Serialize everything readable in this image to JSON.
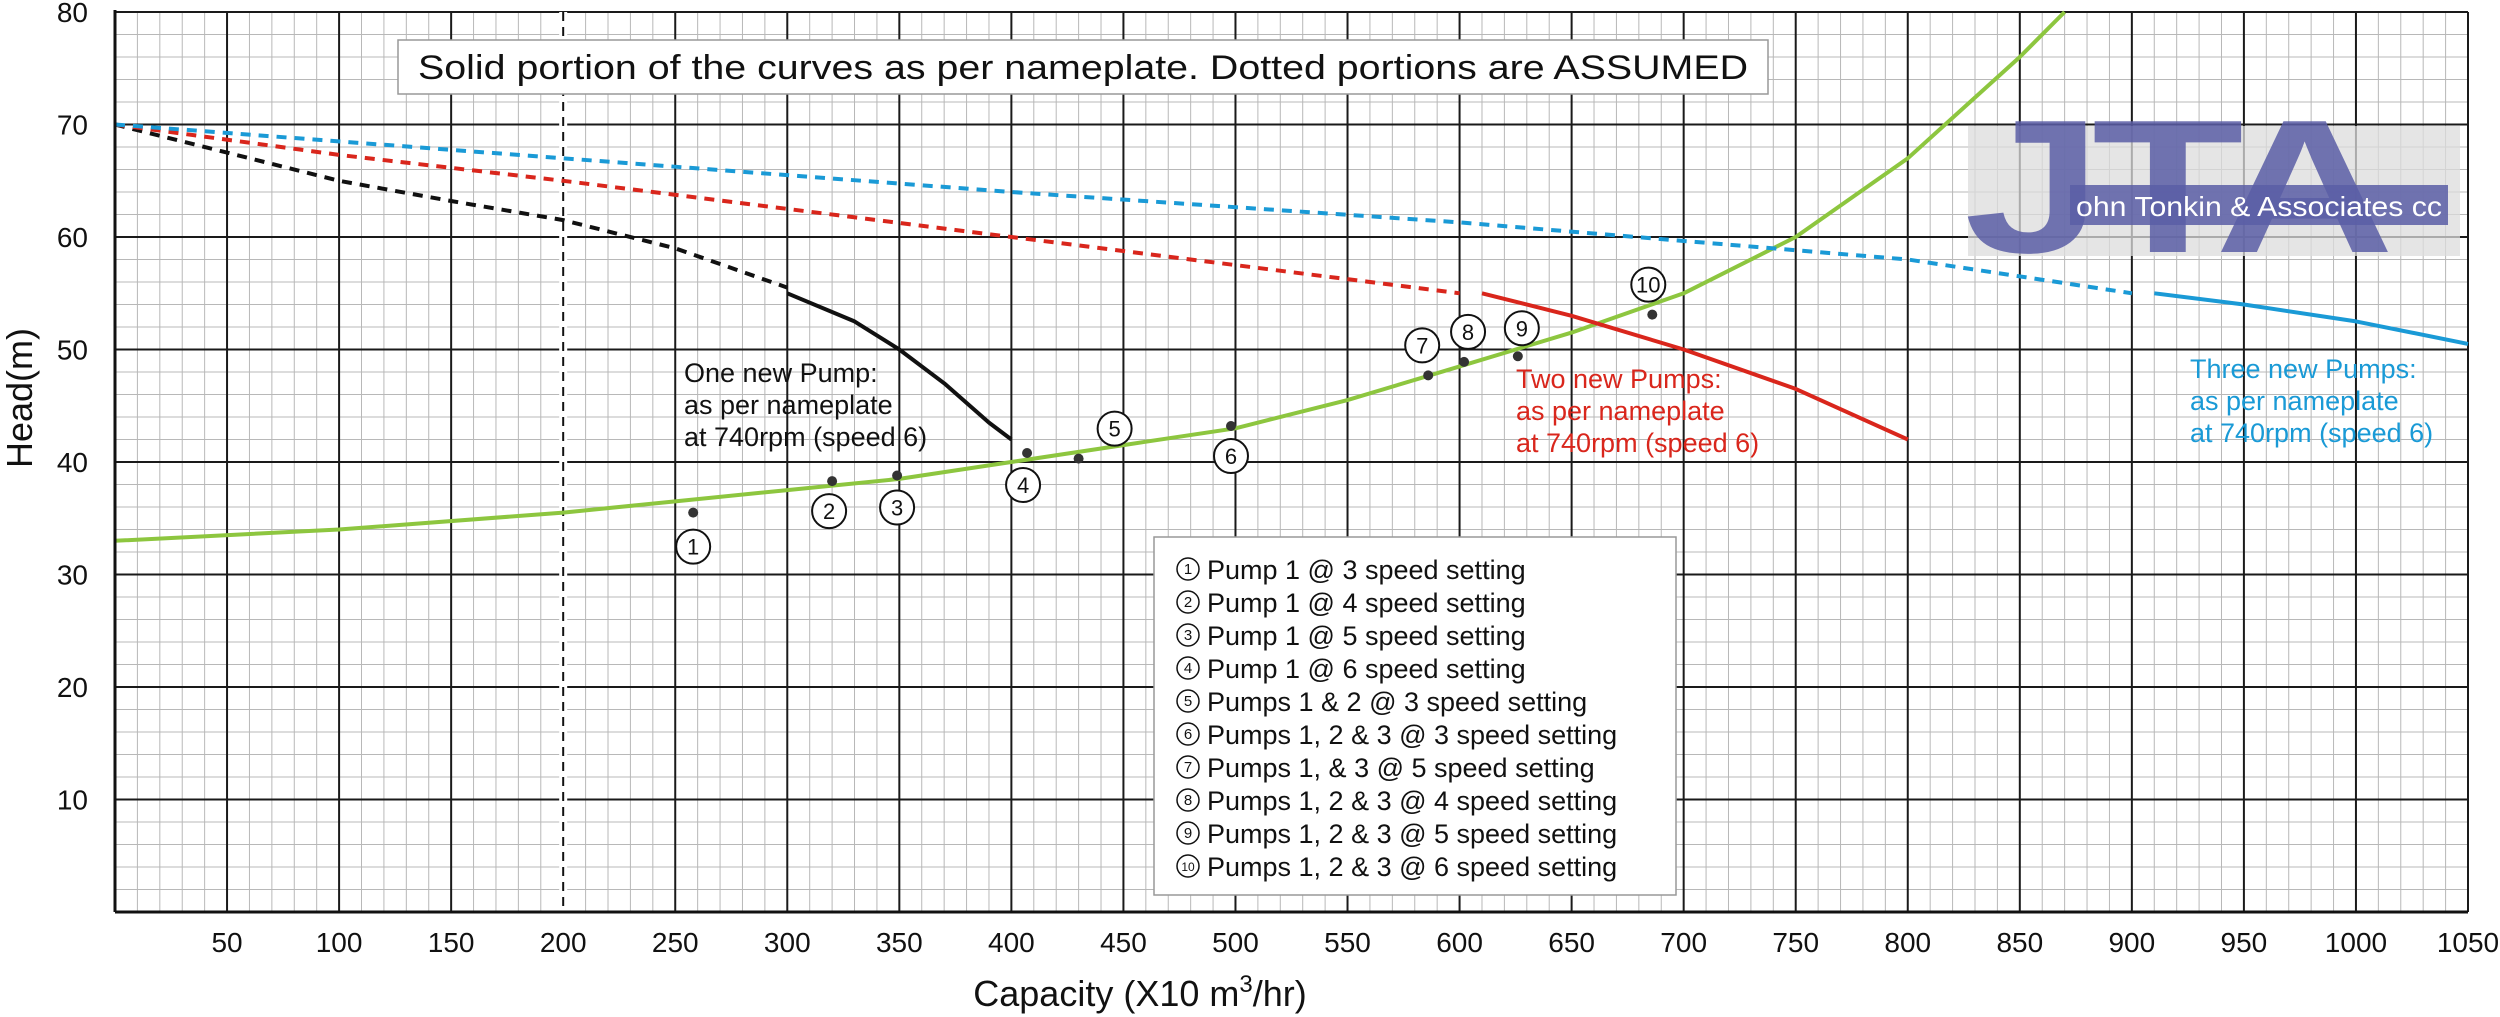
{
  "chart_data": {
    "type": "line",
    "title": "",
    "xlabel_main": "Capacity (X10 m",
    "xlabel_sup": "3",
    "xlabel_tail": "/hr)",
    "ylabel": "Head(m)",
    "xlim": [
      0,
      1050
    ],
    "ylim": [
      0,
      80
    ],
    "grid": true,
    "x_ticks": [
      "50",
      "100",
      "150",
      "200",
      "250",
      "300",
      "350",
      "400",
      "450",
      "500",
      "550",
      "600",
      "650",
      "700",
      "750",
      "800",
      "850",
      "900",
      "950",
      "1000",
      "1050"
    ],
    "y_ticks": [
      "10",
      "20",
      "30",
      "40",
      "50",
      "60",
      "70",
      "80"
    ],
    "reference_line_x": 200,
    "note": "Solid portion of the curves as per nameplate. Dotted portions are ASSUMED",
    "series": [
      {
        "color": "#8dc63f",
        "style": "solid",
        "x": [
          0,
          100,
          200,
          250,
          300,
          350,
          400,
          450,
          500,
          550,
          600,
          650,
          700,
          750,
          800,
          850,
          870
        ],
        "y": [
          33,
          34,
          35.5,
          36.5,
          37.5,
          38.5,
          40,
          41.5,
          43,
          45.5,
          48.5,
          51.5,
          55,
          60,
          67,
          76,
          80
        ]
      },
      {
        "color": "#111111",
        "style": "dashed",
        "x": [
          0,
          50,
          100,
          150,
          200,
          250,
          300
        ],
        "y": [
          70,
          67.5,
          65,
          63.2,
          61.5,
          59,
          55.5
        ]
      },
      {
        "color": "#111111",
        "style": "solid",
        "x": [
          300,
          330,
          350,
          370,
          390,
          400
        ],
        "y": [
          55,
          52.5,
          50,
          47,
          43.5,
          42
        ]
      },
      {
        "color": "#d9261c",
        "style": "dashed",
        "x": [
          0,
          100,
          200,
          300,
          400,
          500,
          600
        ],
        "y": [
          70,
          67.3,
          65,
          62.5,
          60,
          57.5,
          55
        ]
      },
      {
        "color": "#d9261c",
        "style": "solid",
        "x": [
          610,
          650,
          700,
          750,
          800
        ],
        "y": [
          55,
          53,
          50,
          46.5,
          42
        ]
      },
      {
        "color": "#1a9ad6",
        "style": "dashed",
        "x": [
          0,
          200,
          400,
          600,
          800,
          900
        ],
        "y": [
          70,
          67,
          64,
          61.3,
          58,
          55
        ]
      },
      {
        "color": "#1a9ad6",
        "style": "solid",
        "x": [
          910,
          950,
          1000,
          1050
        ],
        "y": [
          55,
          54,
          52.5,
          50.5
        ]
      }
    ],
    "points": [
      {
        "label": "1",
        "x": 258,
        "y": 35.5
      },
      {
        "label": "2",
        "x": 320,
        "y": 38.3
      },
      {
        "label": "3",
        "x": 349,
        "y": 38.8
      },
      {
        "label": "4",
        "x": 407,
        "y": 40.8
      },
      {
        "label": "5",
        "x": 430,
        "y": 40.3
      },
      {
        "label": "6",
        "x": 498,
        "y": 43.2
      },
      {
        "label": "7",
        "x": 586,
        "y": 47.7
      },
      {
        "label": "8",
        "x": 602,
        "y": 48.9
      },
      {
        "label": "9",
        "x": 626,
        "y": 49.4
      },
      {
        "label": "10",
        "x": 686,
        "y": 53.1
      }
    ],
    "annotations": [
      {
        "lines": [
          "One new Pump:",
          "as per nameplate",
          "at 740rpm (speed 6)"
        ],
        "color": "#111111"
      },
      {
        "lines": [
          "Two new Pumps:",
          "as per nameplate",
          "at 740rpm (speed 6)"
        ],
        "color": "#d9261c"
      },
      {
        "lines": [
          "Three new Pumps:",
          "as per nameplate",
          "at 740rpm (speed 6)"
        ],
        "color": "#1a9ad6"
      }
    ],
    "legend": [
      {
        "num": "1",
        "text": "Pump 1 @ 3 speed setting"
      },
      {
        "num": "2",
        "text": "Pump 1 @ 4 speed setting"
      },
      {
        "num": "3",
        "text": "Pump 1 @ 5 speed setting"
      },
      {
        "num": "4",
        "text": "Pump 1 @ 6 speed setting"
      },
      {
        "num": "5",
        "text": "Pumps 1 & 2 @ 3 speed setting"
      },
      {
        "num": "6",
        "text": "Pumps 1, 2 & 3 @ 3 speed setting"
      },
      {
        "num": "7",
        "text": "Pumps 1, & 3 @ 5 speed setting"
      },
      {
        "num": "8",
        "text": "Pumps 1, 2 & 3 @ 4 speed setting"
      },
      {
        "num": "9",
        "text": "Pumps 1, 2 & 3 @ 5 speed setting"
      },
      {
        "num": "10",
        "text": "Pumps 1, 2 & 3 @ 6 speed setting"
      }
    ],
    "legend_placement": "bottom-center",
    "logo": {
      "mark": "JTA",
      "name": "ohn Tonkin & Associates cc"
    }
  }
}
